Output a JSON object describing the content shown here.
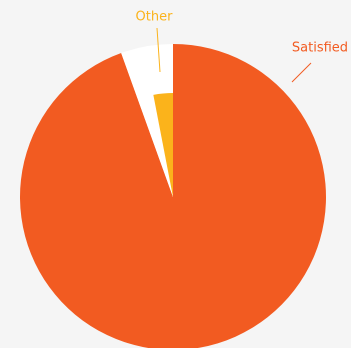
{
  "chart_data": {
    "type": "pie",
    "categories": [
      "Satisfied",
      "Other"
    ],
    "values": [
      94.5,
      5.5
    ],
    "colors": [
      "#f25b21",
      "#fbb31b"
    ]
  }
}
